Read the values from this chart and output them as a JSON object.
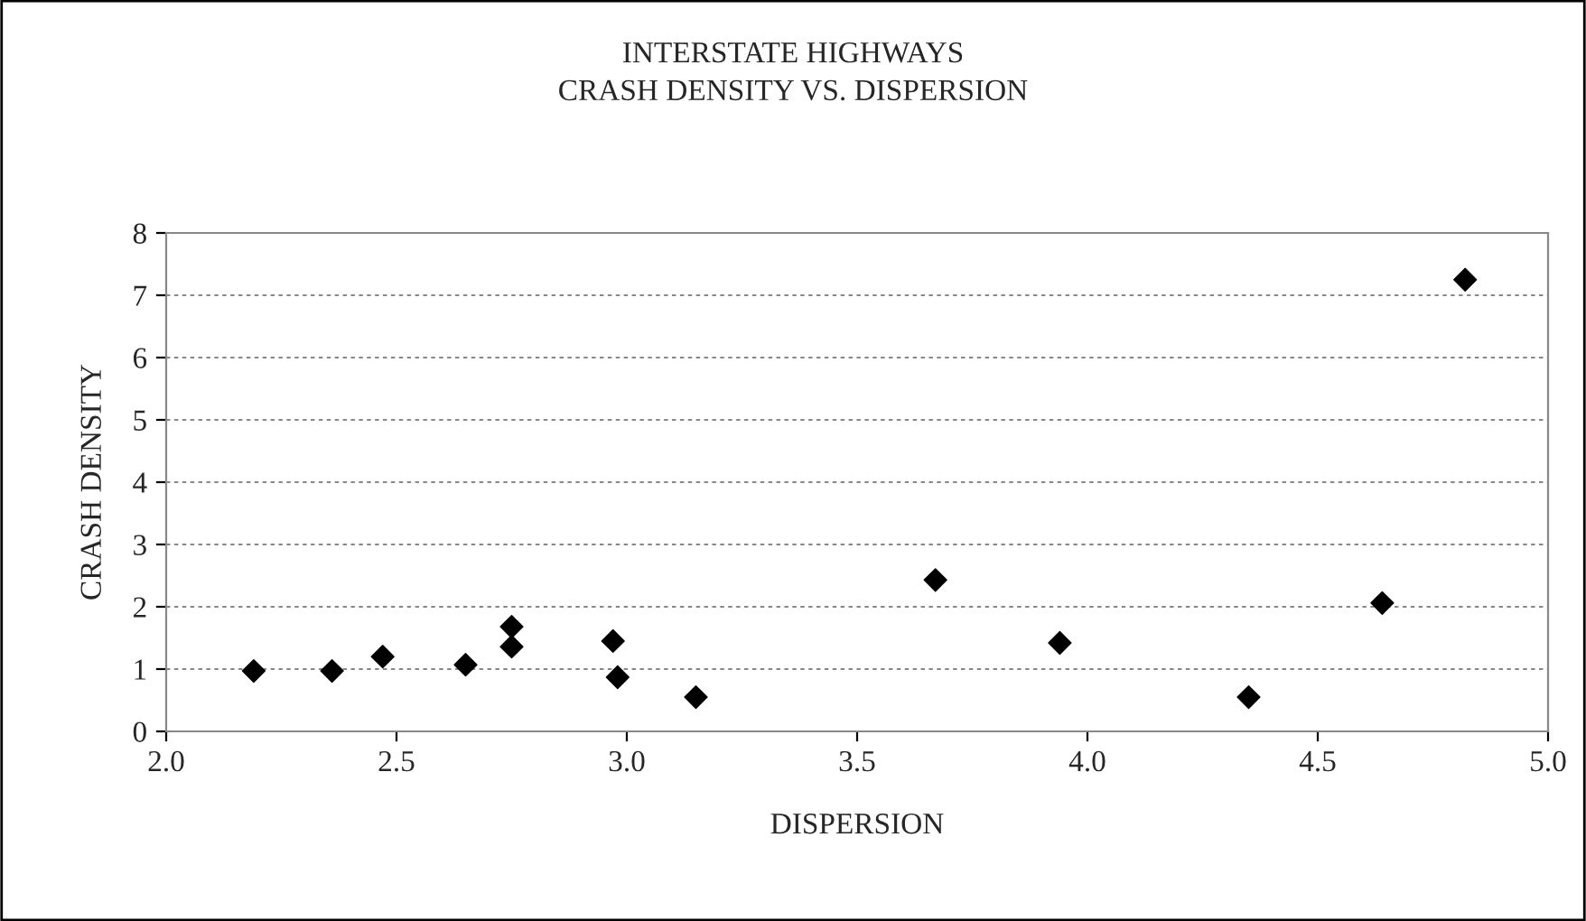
{
  "chart_data": {
    "type": "scatter",
    "title": "INTERSTATE HIGHWAYS\nCRASH DENSITY VS. DISPERSION",
    "xlabel": "DISPERSION",
    "ylabel": "CRASH DENSITY",
    "series": [
      {
        "color": "#000000",
        "x": [
          2.19,
          2.36,
          2.47,
          2.65,
          2.75,
          2.75,
          2.97,
          2.98,
          3.15,
          3.67,
          3.94,
          4.35,
          4.64,
          4.82
        ],
        "values": [
          0.97,
          0.97,
          1.2,
          1.07,
          1.68,
          1.36,
          1.45,
          0.87,
          0.55,
          2.43,
          1.42,
          0.55,
          2.06,
          7.25
        ]
      }
    ],
    "xlim": [
      2.0,
      5.0
    ],
    "xticks": [
      {
        "value": 2.0,
        "label": "2.0"
      },
      {
        "value": 2.5,
        "label": "2.5"
      },
      {
        "value": 3.0,
        "label": "3.0"
      },
      {
        "value": 3.5,
        "label": "3.5"
      },
      {
        "value": 4.0,
        "label": "4.0"
      },
      {
        "value": 4.5,
        "label": "4.5"
      },
      {
        "value": 5.0,
        "label": "5.0"
      }
    ],
    "ylim": [
      0,
      8
    ],
    "yticks": [
      0,
      1,
      2,
      3,
      4,
      5,
      6,
      7,
      8
    ],
    "grid": "y",
    "marker": "diamond"
  }
}
